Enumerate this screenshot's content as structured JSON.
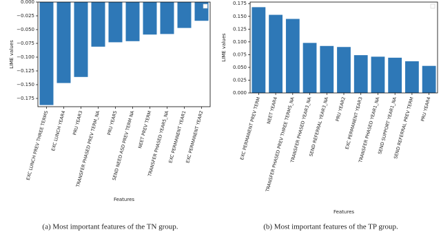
{
  "chart_data": [
    {
      "type": "bar",
      "y_label": "LIME values",
      "x_label": "Features",
      "caption": "(a) Most important features of the TN group.",
      "categories": [
        "EXC LUNCH PREV THREE TERMS",
        "EXC LUNCH YEAR4",
        "PRU YEAR3",
        "TRANSFER PHASED PREV TERM_NA",
        "PRU YEAR5",
        "SEND NEED ASD PREV TERM NA",
        "NEET PREV TERM",
        "TRANSFER PHASED YEAR5_NA",
        "EXC PERMANENT YEAR1",
        "EXC PERMANENT YEAR2"
      ],
      "values": [
        -0.187,
        -0.147,
        -0.136,
        -0.081,
        -0.073,
        -0.071,
        -0.059,
        -0.058,
        -0.047,
        -0.034
      ],
      "color": "#2e78b7",
      "ylim": [
        -0.19,
        0.0
      ],
      "yticks": [
        {
          "value": 0.0,
          "label": "0.000"
        },
        {
          "value": -0.025,
          "label": "−0.025"
        },
        {
          "value": -0.05,
          "label": "−0.050"
        },
        {
          "value": -0.075,
          "label": "−0.075"
        },
        {
          "value": -0.1,
          "label": "−0.100"
        },
        {
          "value": -0.125,
          "label": "−0.125"
        },
        {
          "value": -0.15,
          "label": "−0.150"
        },
        {
          "value": -0.175,
          "label": "−0.175"
        }
      ]
    },
    {
      "type": "bar",
      "y_label": "LIME values",
      "x_label": "Features",
      "caption": "(b) Most important features of the TP group.",
      "categories": [
        "EXC PERMANENT PREV TERM",
        "NEET YEAR4",
        "TRANSFER PHASED PREV THREE TERMS_NA",
        "TRANSFER PHASED YEAR3_NA",
        "SEND REFERRAL YEAR3_NA",
        "PRU YEAR2",
        "EXC PERMANENT YEAR3",
        "TRANSFER PHASED YEAR1_NA",
        "SEND SUPPORT YEAR1_NA",
        "SEND REFERRAL PREV TERM",
        "PRU YEAR4"
      ],
      "values": [
        0.168,
        0.153,
        0.145,
        0.098,
        0.092,
        0.09,
        0.074,
        0.071,
        0.069,
        0.062,
        0.053
      ],
      "color": "#2e78b7",
      "ylim": [
        0.0,
        0.178
      ],
      "yticks": [
        {
          "value": 0.0,
          "label": "0.000"
        },
        {
          "value": 0.025,
          "label": "0.025"
        },
        {
          "value": 0.05,
          "label": "0.050"
        },
        {
          "value": 0.075,
          "label": "0.075"
        },
        {
          "value": 0.1,
          "label": "0.100"
        },
        {
          "value": 0.125,
          "label": "0.125"
        },
        {
          "value": 0.15,
          "label": "0.150"
        },
        {
          "value": 0.175,
          "label": "0.175"
        }
      ]
    }
  ]
}
